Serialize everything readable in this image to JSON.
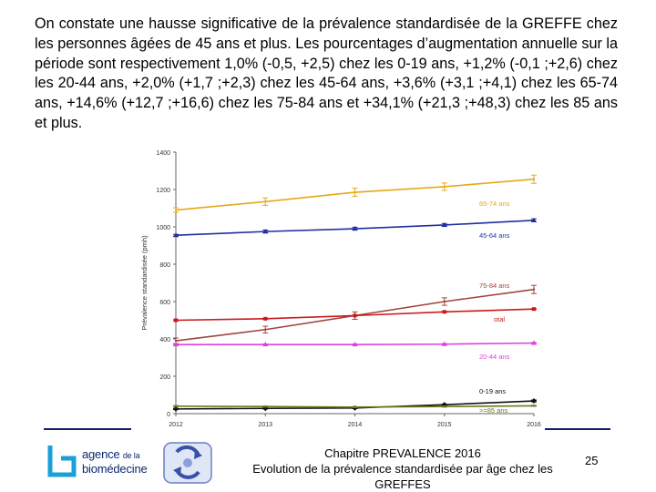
{
  "intro_text": "On constate une hausse significative de la prévalence standardisée de la GREFFE chez les personnes âgées de 45 ans et plus. Les pourcentages d’augmentation annuelle sur la période sont respectivement 1,0% (-0,5, +2,5) chez les 0-19 ans, +1,2% (-0,1 ;+2,6) chez les 20-44 ans, +2,0% (+1,7 ;+2,3) chez les 45-64 ans, +3,6% (+3,1 ;+4,1) chez les 65-74 ans, +14,6% (+12,7 ;+16,6) chez les 75-84 ans et +34,1% (+21,3 ;+48,3) chez les 85 ans et plus.",
  "chart_data": {
    "type": "line",
    "title": "",
    "xlabel": "",
    "ylabel": "Prévalence standardisée (pmh)",
    "x": [
      2012,
      2013,
      2014,
      2015,
      2016
    ],
    "ylim": [
      0,
      1400
    ],
    "yticks": [
      0,
      200,
      400,
      600,
      800,
      1000,
      1200,
      1400
    ],
    "grid": false,
    "series": [
      {
        "name": "65-74 ans",
        "color": "#e6a817",
        "marker": "line",
        "values": [
          1090,
          1135,
          1185,
          1215,
          1255
        ],
        "errors": [
          12,
          20,
          22,
          20,
          22
        ]
      },
      {
        "name": "45-64 ans",
        "color": "#1f2fa0",
        "marker": "triangle",
        "values": [
          955,
          975,
          990,
          1010,
          1035
        ],
        "errors": [
          5,
          8,
          8,
          8,
          8
        ]
      },
      {
        "name": "75-84 ans",
        "color": "#a0453c",
        "marker": "line",
        "values": [
          390,
          450,
          525,
          600,
          665
        ],
        "errors": [
          15,
          18,
          20,
          20,
          22
        ]
      },
      {
        "name": "otal",
        "color": "#cc1a1a",
        "marker": "square",
        "values": [
          500,
          508,
          525,
          545,
          560
        ],
        "errors": [
          3,
          3,
          3,
          3,
          3
        ]
      },
      {
        "name": "20-44 ans",
        "color": "#e040e0",
        "marker": "triangle",
        "values": [
          370,
          370,
          370,
          372,
          378
        ],
        "errors": [
          3,
          3,
          3,
          3,
          3
        ]
      },
      {
        "name": "0-19 ans",
        "color": "#111111",
        "marker": "diamond",
        "values": [
          25,
          28,
          30,
          48,
          68
        ],
        "errors": [
          3,
          3,
          3,
          3,
          5
        ]
      },
      {
        "name": ">=85 ans",
        "color": "#6b7a1e",
        "marker": "line",
        "values": [
          40,
          38,
          35,
          38,
          42
        ],
        "errors": [
          3,
          3,
          3,
          3,
          3
        ]
      }
    ]
  },
  "logo": {
    "line1_prefix": "agence ",
    "line1_small": "de la",
    "line2": "biomédecine"
  },
  "footer": {
    "line1": "Chapitre PREVALENCE 2016",
    "line2": "Evolution de la prévalence standardisée par âge chez les",
    "line3": "GREFFES"
  },
  "page_number": "25",
  "colors": {
    "rule": "#0a1f6e",
    "logo": "#0a2a6e",
    "axis": "#666666"
  }
}
